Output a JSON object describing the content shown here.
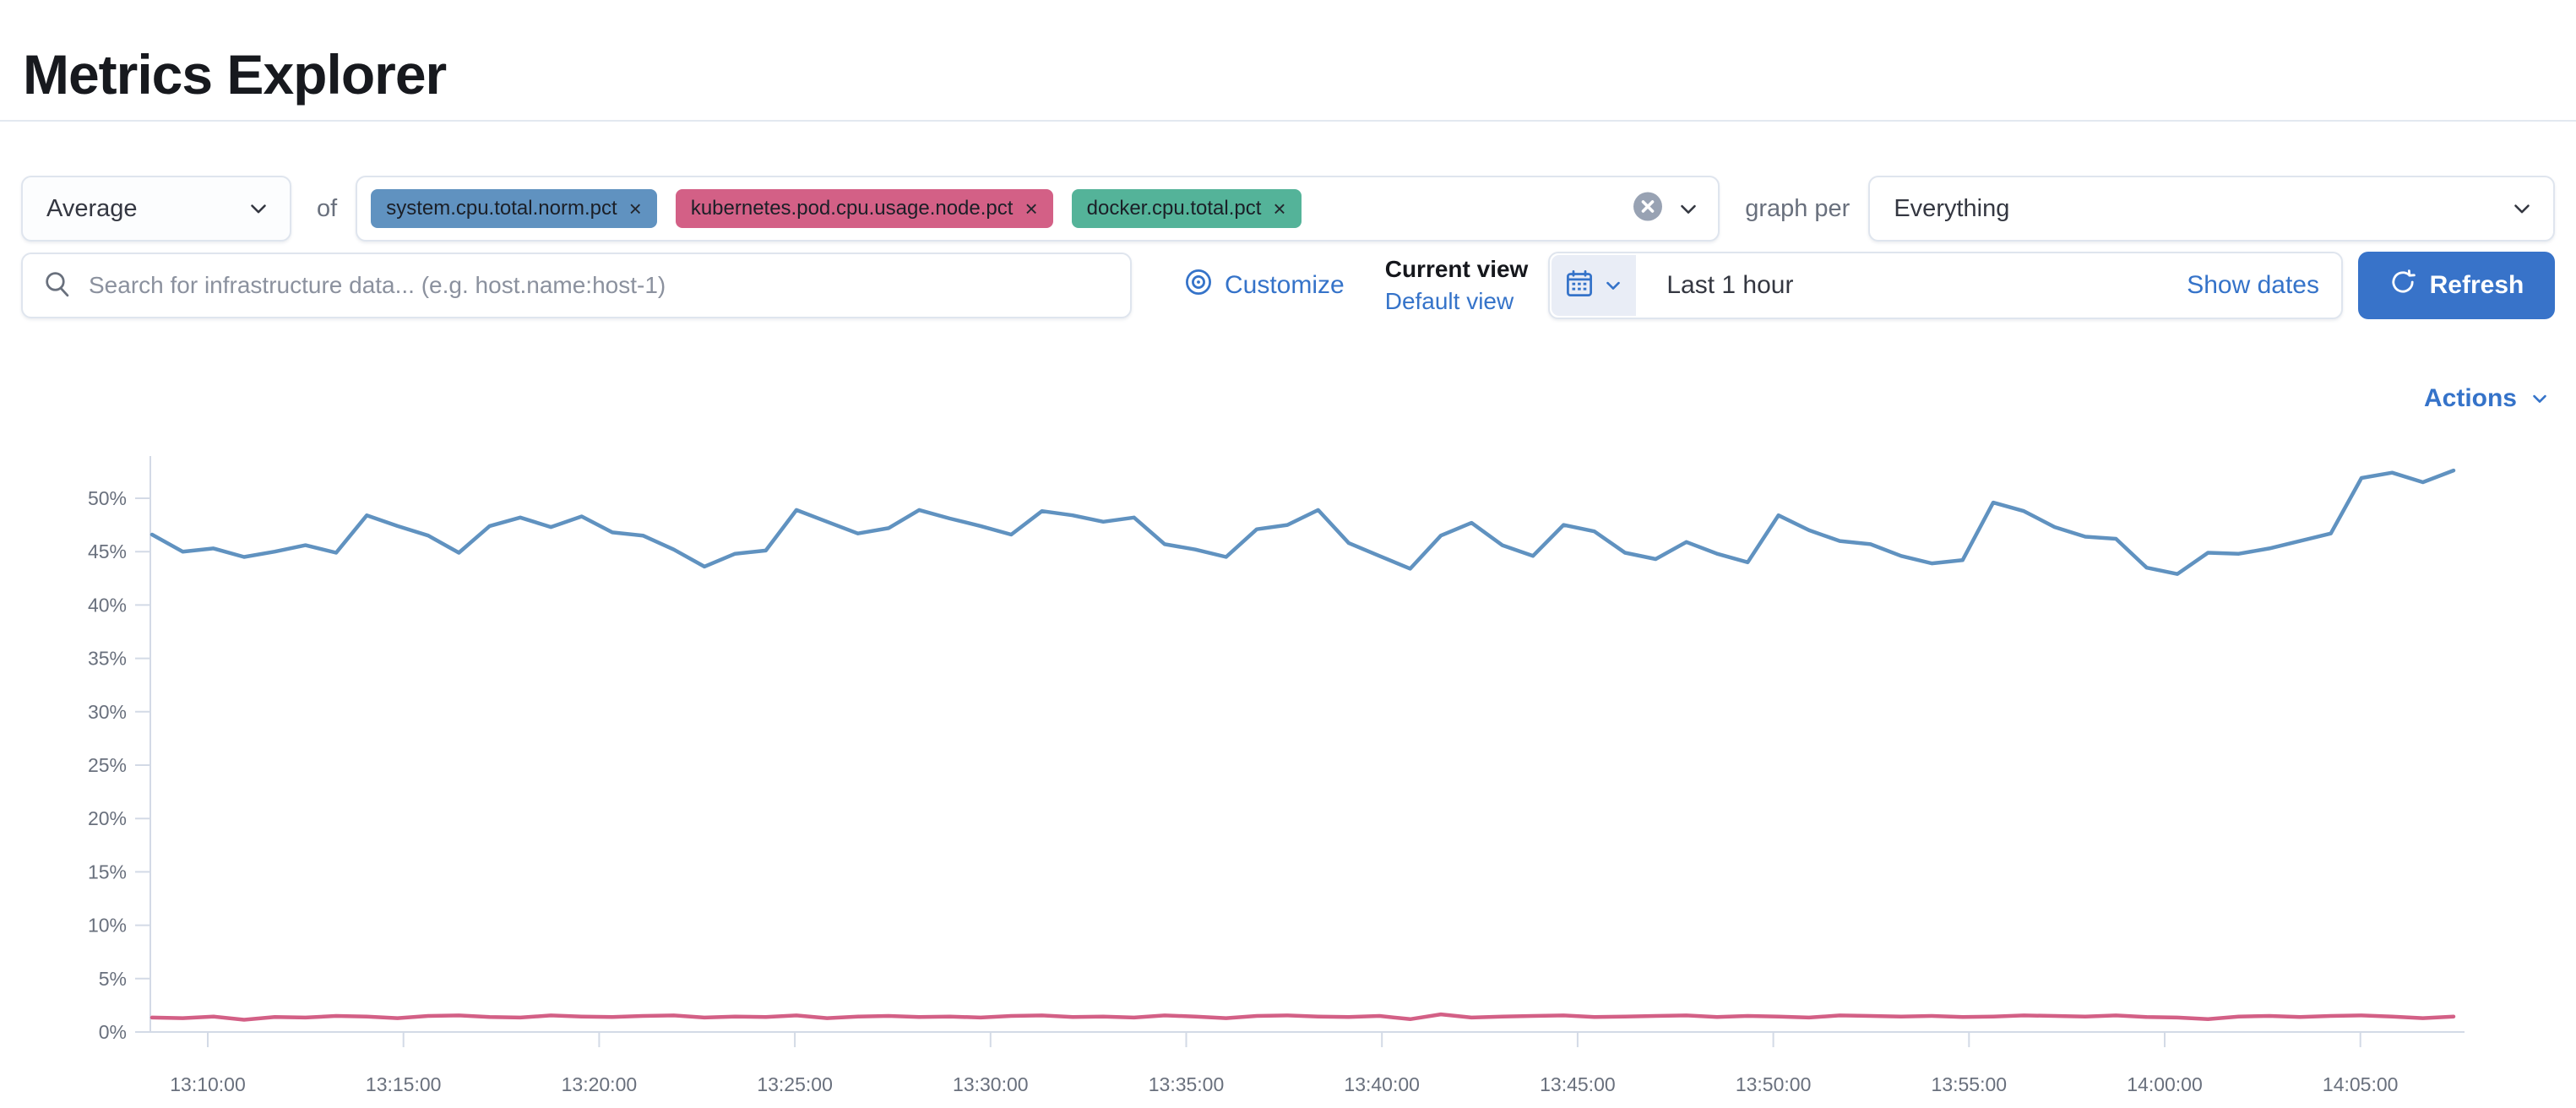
{
  "page": {
    "title": "Metrics Explorer"
  },
  "toolbar": {
    "aggregation": {
      "value": "Average"
    },
    "of_label": "of",
    "metrics": [
      {
        "label": "system.cpu.total.norm.pct",
        "color": "#6092C0",
        "remove_icon": "x"
      },
      {
        "label": "kubernetes.pod.cpu.usage.node.pct",
        "color": "#D36086",
        "remove_icon": "x"
      },
      {
        "label": "docker.cpu.total.pct",
        "color": "#54B399",
        "remove_icon": "x"
      }
    ],
    "clear_all_icon": "circle-x",
    "graph_per_label": "graph per",
    "group_by": {
      "value": "Everything"
    }
  },
  "search": {
    "placeholder": "Search for infrastructure data... (e.g. host.name:host-1)",
    "value": ""
  },
  "view_controls": {
    "customize_label": "Customize",
    "current_view_label": "Current view",
    "default_view_label": "Default view"
  },
  "time_controls": {
    "range_label": "Last 1 hour",
    "show_dates_label": "Show dates",
    "refresh_label": "Refresh",
    "calendar_icon": "calendar",
    "refresh_icon": "refresh"
  },
  "chart_section": {
    "actions_label": "Actions"
  },
  "colors": {
    "link_blue": "#3573C9",
    "primary_button": "#3873C9",
    "series_blue": "#6092C0",
    "series_pink": "#D36086",
    "axis_gray": "#d3dae6",
    "axis_text": "#69707d"
  },
  "chart_data": {
    "type": "line",
    "title": "",
    "xlabel": "",
    "ylabel": "",
    "grid": false,
    "legend": "none",
    "x_axis": {
      "start": "13:08:30",
      "end": "14:07:30",
      "tick_labels": [
        "13:10:00",
        "13:15:00",
        "13:20:00",
        "13:25:00",
        "13:30:00",
        "13:35:00",
        "13:40:00",
        "13:45:00",
        "13:50:00",
        "13:55:00",
        "14:00:00",
        "14:05:00"
      ]
    },
    "y_axis": {
      "unit": "%",
      "min": 0,
      "max_visible": 52.8,
      "tick_labels": [
        "0%",
        "5%",
        "10%",
        "15%",
        "20%",
        "25%",
        "30%",
        "35%",
        "40%",
        "45%",
        "50%"
      ]
    },
    "series": [
      {
        "name": "Average system.cpu.total.norm.pct",
        "color": "#6092C0",
        "values": [
          46.6,
          45.0,
          45.3,
          44.5,
          45.0,
          45.6,
          44.9,
          48.4,
          47.4,
          46.5,
          44.9,
          47.4,
          48.2,
          47.3,
          48.3,
          46.8,
          46.5,
          45.2,
          43.6,
          44.8,
          45.1,
          48.9,
          47.8,
          46.7,
          47.2,
          48.9,
          48.1,
          47.4,
          46.6,
          48.8,
          48.4,
          47.8,
          48.2,
          45.7,
          45.2,
          44.5,
          47.1,
          47.5,
          48.9,
          45.8,
          44.6,
          43.4,
          46.5,
          47.7,
          45.6,
          44.6,
          47.5,
          46.9,
          44.9,
          44.3,
          45.9,
          44.8,
          44.0,
          48.4,
          47.0,
          46.0,
          45.7,
          44.6,
          43.9,
          44.2,
          49.6,
          48.8,
          47.3,
          46.4,
          46.2,
          43.5,
          42.9,
          44.9,
          44.8,
          45.3,
          46.0,
          46.7,
          51.9,
          52.4,
          51.5,
          52.6
        ]
      },
      {
        "name": "Average kubernetes.pod.cpu.usage.node.pct",
        "color": "#D36086",
        "values": [
          1.35,
          1.3,
          1.45,
          1.15,
          1.4,
          1.35,
          1.5,
          1.45,
          1.3,
          1.5,
          1.55,
          1.4,
          1.35,
          1.55,
          1.45,
          1.4,
          1.5,
          1.55,
          1.35,
          1.45,
          1.4,
          1.55,
          1.3,
          1.45,
          1.5,
          1.4,
          1.45,
          1.35,
          1.5,
          1.55,
          1.4,
          1.45,
          1.35,
          1.55,
          1.45,
          1.3,
          1.5,
          1.55,
          1.45,
          1.4,
          1.5,
          1.2,
          1.65,
          1.35,
          1.45,
          1.5,
          1.55,
          1.4,
          1.45,
          1.5,
          1.55,
          1.4,
          1.5,
          1.45,
          1.35,
          1.55,
          1.5,
          1.45,
          1.5,
          1.4,
          1.45,
          1.55,
          1.5,
          1.45,
          1.55,
          1.4,
          1.35,
          1.2,
          1.45,
          1.5,
          1.4,
          1.5,
          1.55,
          1.45,
          1.3,
          1.45
        ]
      }
    ]
  }
}
